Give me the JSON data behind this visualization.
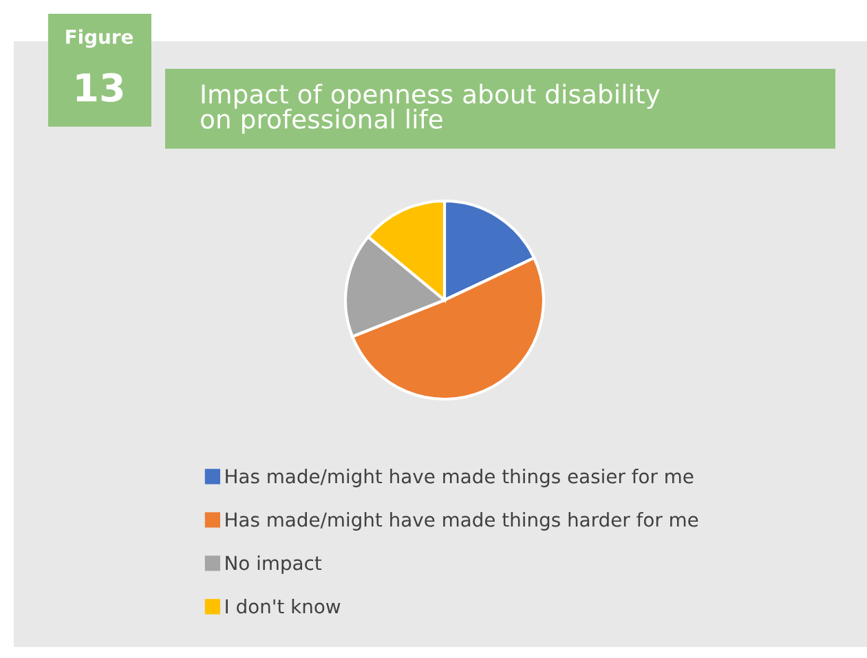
{
  "chart_data": {
    "type": "pie",
    "title": "Impact of openness about disability\non professional life",
    "annotations": [
      "Figure",
      "13"
    ],
    "categories": [
      "Has made/might have made things easier for me",
      "Has made/might have made things harder for me",
      "No impact",
      "I don't know"
    ],
    "values": [
      18,
      51,
      17,
      14
    ],
    "colors": [
      "#4472c4",
      "#ed7d31",
      "#a5a5a5",
      "#ffc000"
    ],
    "legend": "bottom"
  }
}
